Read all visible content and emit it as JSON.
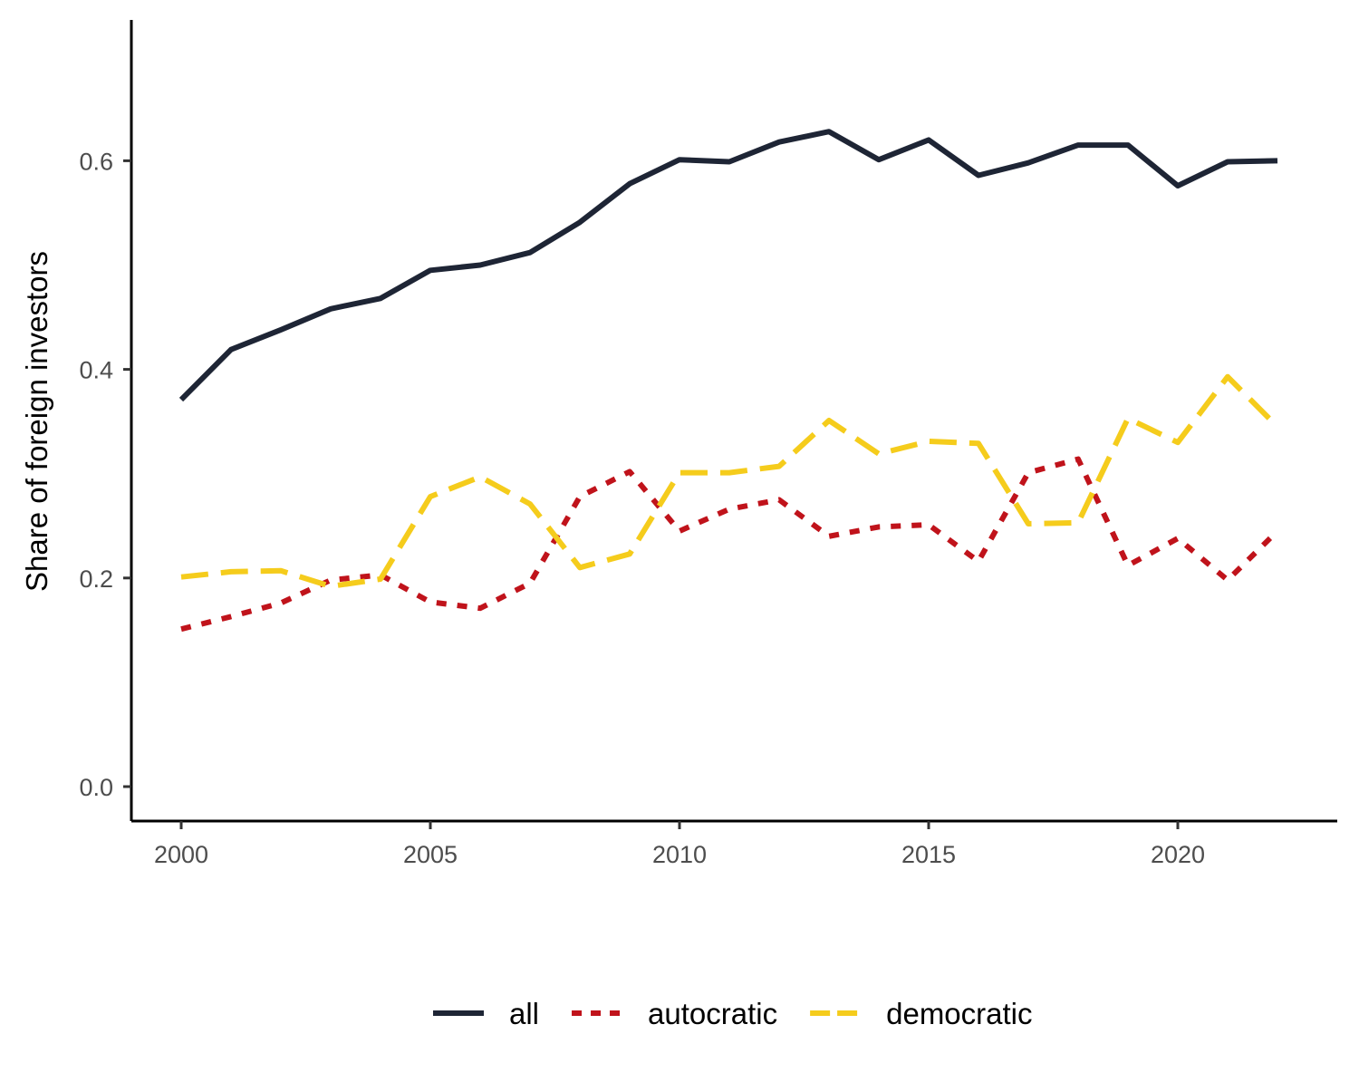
{
  "chart_data": {
    "type": "line",
    "title": "",
    "xlabel": "",
    "ylabel": "Share of foreign investors",
    "x": [
      2000,
      2001,
      2002,
      2003,
      2004,
      2005,
      2006,
      2007,
      2008,
      2009,
      2010,
      2011,
      2012,
      2013,
      2014,
      2015,
      2016,
      2017,
      2018,
      2019,
      2020,
      2021,
      2022
    ],
    "xlim": [
      1999,
      2023.2
    ],
    "ylim": [
      -0.033,
      0.735
    ],
    "xticks": [
      2000,
      2005,
      2010,
      2015,
      2020
    ],
    "xtick_labels": [
      "2000",
      "2005",
      "2010",
      "2015",
      "2020"
    ],
    "yticks": [
      0.0,
      0.2,
      0.4,
      0.6
    ],
    "ytick_labels": [
      "0.0",
      "0.2",
      "0.4",
      "0.6"
    ],
    "grid": false,
    "legend_position": "bottom",
    "series": [
      {
        "name": "all",
        "color": "#1e2535",
        "line_style": "solid",
        "values": [
          0.371,
          0.419,
          0.438,
          0.458,
          0.468,
          0.495,
          0.5,
          0.512,
          0.541,
          0.578,
          0.601,
          0.599,
          0.618,
          0.628,
          0.601,
          0.62,
          0.586,
          0.598,
          0.615,
          0.615,
          0.576,
          0.599,
          0.6
        ]
      },
      {
        "name": "autocratic",
        "color": "#c0131b",
        "line_style": "dotted",
        "values": [
          0.151,
          0.163,
          0.176,
          0.198,
          0.203,
          0.177,
          0.171,
          0.195,
          0.278,
          0.302,
          0.245,
          0.266,
          0.275,
          0.24,
          0.249,
          0.251,
          0.216,
          0.301,
          0.314,
          0.212,
          0.238,
          0.198,
          0.245
        ]
      },
      {
        "name": "democratic",
        "color": "#f5cc1c",
        "line_style": "dashed",
        "values": [
          0.201,
          0.206,
          0.207,
          0.192,
          0.199,
          0.278,
          0.297,
          0.271,
          0.21,
          0.223,
          0.301,
          0.301,
          0.307,
          0.351,
          0.319,
          0.331,
          0.329,
          0.252,
          0.253,
          0.353,
          0.33,
          0.393,
          0.345
        ]
      }
    ]
  }
}
